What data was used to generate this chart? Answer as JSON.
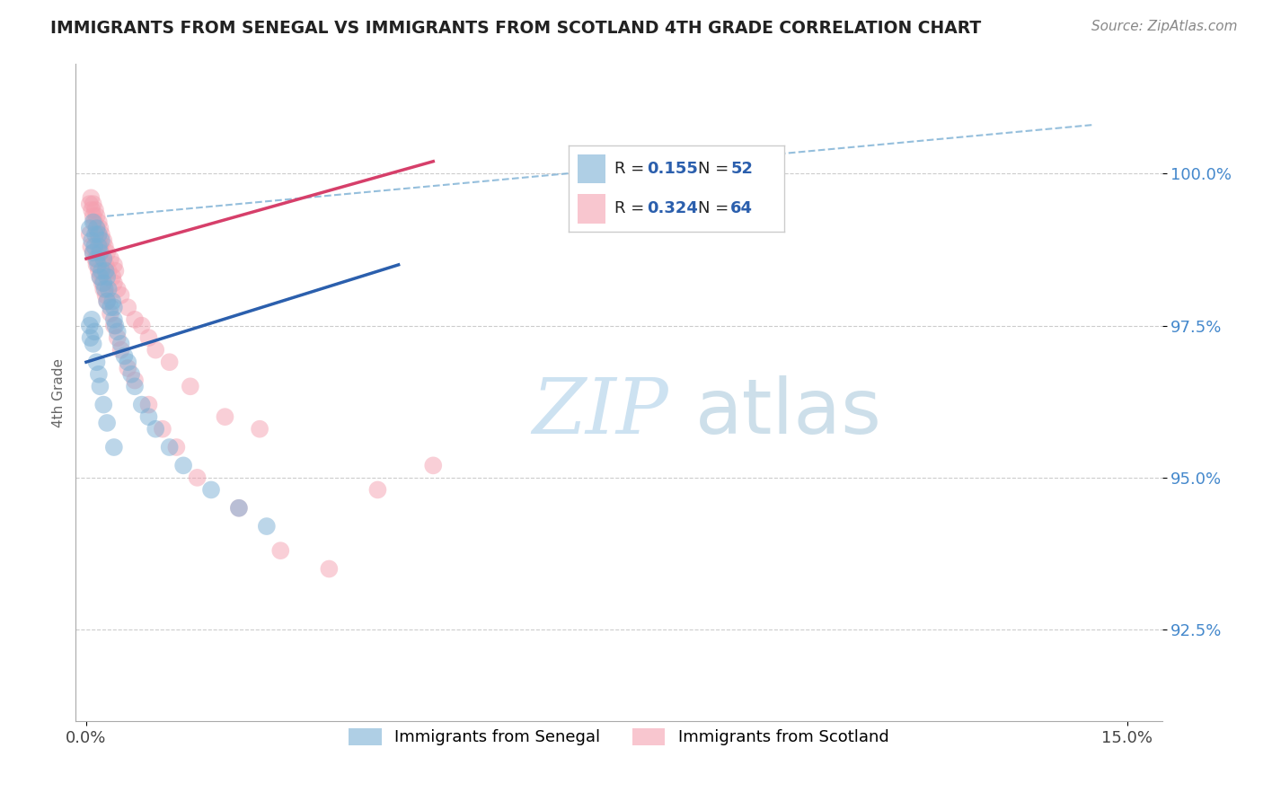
{
  "title": "IMMIGRANTS FROM SENEGAL VS IMMIGRANTS FROM SCOTLAND 4TH GRADE CORRELATION CHART",
  "source": "Source: ZipAtlas.com",
  "ylabel": "4th Grade",
  "xlim": [
    -0.15,
    15.5
  ],
  "ylim": [
    91.0,
    101.8
  ],
  "yticks": [
    92.5,
    95.0,
    97.5,
    100.0
  ],
  "ytick_labels": [
    "92.5%",
    "95.0%",
    "97.5%",
    "100.0%"
  ],
  "xtick_labels": [
    "0.0%",
    "15.0%"
  ],
  "xtick_vals": [
    0.0,
    15.0
  ],
  "legend_r_blue": "0.155",
  "legend_n_blue": "52",
  "legend_r_pink": "0.324",
  "legend_n_pink": "64",
  "legend_label_blue": "Immigrants from Senegal",
  "legend_label_pink": "Immigrants from Scotland",
  "blue_color": "#7bafd4",
  "pink_color": "#f4a0b0",
  "trend_blue_color": "#2b5fad",
  "trend_pink_color": "#d63f6a",
  "dashed_color": "#7bafd4",
  "senegal_x": [
    0.05,
    0.08,
    0.1,
    0.1,
    0.12,
    0.13,
    0.15,
    0.15,
    0.17,
    0.18,
    0.18,
    0.2,
    0.2,
    0.22,
    0.22,
    0.25,
    0.25,
    0.27,
    0.28,
    0.3,
    0.3,
    0.32,
    0.35,
    0.38,
    0.4,
    0.4,
    0.42,
    0.45,
    0.5,
    0.55,
    0.6,
    0.65,
    0.7,
    0.8,
    0.9,
    1.0,
    1.2,
    1.4,
    1.8,
    2.2,
    2.6,
    0.05,
    0.06,
    0.08,
    0.1,
    0.12,
    0.15,
    0.18,
    0.2,
    0.25,
    0.3,
    0.4
  ],
  "senegal_y": [
    99.1,
    98.9,
    99.2,
    98.7,
    98.8,
    99.0,
    98.6,
    99.1,
    98.5,
    98.8,
    99.0,
    98.3,
    98.7,
    98.4,
    98.9,
    98.2,
    98.6,
    98.1,
    98.4,
    97.9,
    98.3,
    98.1,
    97.8,
    97.9,
    97.6,
    97.8,
    97.5,
    97.4,
    97.2,
    97.0,
    96.9,
    96.7,
    96.5,
    96.2,
    96.0,
    95.8,
    95.5,
    95.2,
    94.8,
    94.5,
    94.2,
    97.5,
    97.3,
    97.6,
    97.2,
    97.4,
    96.9,
    96.7,
    96.5,
    96.2,
    95.9,
    95.5
  ],
  "scotland_x": [
    0.05,
    0.07,
    0.08,
    0.1,
    0.1,
    0.12,
    0.13,
    0.15,
    0.15,
    0.17,
    0.18,
    0.18,
    0.2,
    0.2,
    0.22,
    0.22,
    0.25,
    0.25,
    0.27,
    0.28,
    0.3,
    0.32,
    0.35,
    0.38,
    0.4,
    0.4,
    0.42,
    0.45,
    0.5,
    0.6,
    0.7,
    0.8,
    0.9,
    1.0,
    1.2,
    1.5,
    2.0,
    2.5,
    0.05,
    0.07,
    0.1,
    0.13,
    0.15,
    0.18,
    0.2,
    0.23,
    0.25,
    0.28,
    0.3,
    0.35,
    0.4,
    0.45,
    0.5,
    0.6,
    0.7,
    0.9,
    1.1,
    1.3,
    1.6,
    2.2,
    2.8,
    3.5,
    4.2,
    5.0
  ],
  "scotland_y": [
    99.5,
    99.6,
    99.4,
    99.3,
    99.5,
    99.2,
    99.4,
    99.1,
    99.3,
    99.0,
    99.2,
    98.9,
    99.1,
    98.8,
    99.0,
    98.7,
    98.9,
    98.6,
    98.8,
    98.5,
    98.7,
    98.4,
    98.6,
    98.3,
    98.5,
    98.2,
    98.4,
    98.1,
    98.0,
    97.8,
    97.6,
    97.5,
    97.3,
    97.1,
    96.9,
    96.5,
    96.0,
    95.8,
    99.0,
    98.8,
    98.7,
    98.6,
    98.5,
    98.4,
    98.3,
    98.2,
    98.1,
    98.0,
    97.9,
    97.7,
    97.5,
    97.3,
    97.1,
    96.8,
    96.6,
    96.2,
    95.8,
    95.5,
    95.0,
    94.5,
    93.8,
    93.5,
    94.8,
    95.2
  ],
  "blue_trend_x0": 0.0,
  "blue_trend_y0": 96.9,
  "blue_trend_x1": 4.5,
  "blue_trend_y1": 98.5,
  "pink_trend_x0": 0.0,
  "pink_trend_y0": 98.6,
  "pink_trend_x1": 5.0,
  "pink_trend_y1": 100.2,
  "dashed_upper_x0": 0.3,
  "dashed_upper_y0": 99.3,
  "dashed_upper_x1": 14.5,
  "dashed_upper_y1": 100.8,
  "dashed_lower_x0": 0.0,
  "dashed_lower_y0": 96.9,
  "dashed_lower_x1": 4.5,
  "dashed_lower_y1": 98.5,
  "watermark_zip_color": "#c8dff0",
  "watermark_atlas_color": "#c8dce8",
  "background_color": "#ffffff"
}
